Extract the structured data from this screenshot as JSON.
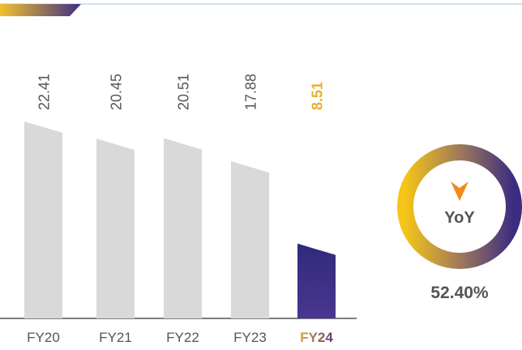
{
  "chart_data": {
    "type": "bar",
    "categories": [
      "FY20",
      "FY21",
      "FY22",
      "FY23",
      "FY24"
    ],
    "values": [
      22.41,
      20.45,
      20.51,
      17.88,
      8.51
    ],
    "colors": [
      "#d9d9d9",
      "#d9d9d9",
      "#d9d9d9",
      "#d9d9d9",
      "#3c2f82"
    ],
    "label_colors": [
      "#555555",
      "#555555",
      "#555555",
      "#555555",
      "#e8b12a"
    ],
    "annotations": [
      "YoY",
      "52.40%"
    ]
  }
}
